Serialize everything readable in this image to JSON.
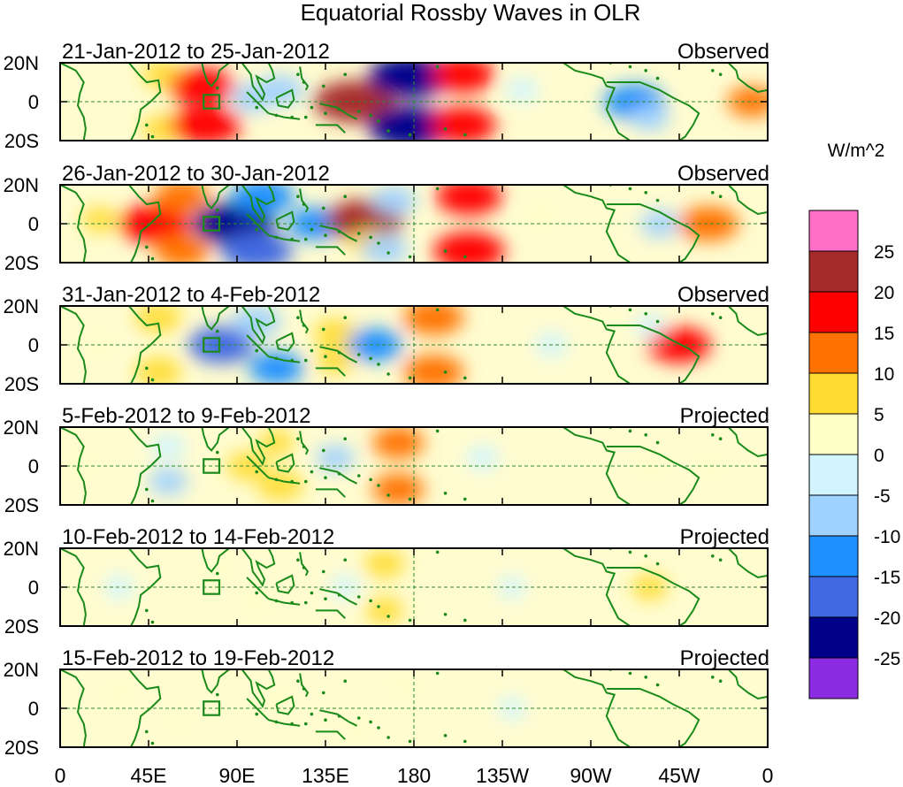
{
  "chart_data": {
    "type": "heatmap",
    "title": "Equatorial Rossby Waves in OLR",
    "colorbar_unit": "W/m^2",
    "colorbar_levels": [
      "25",
      "20",
      "15",
      "10",
      "5",
      "0",
      "-5",
      "-10",
      "-15",
      "-20",
      "-25"
    ],
    "colorbar_colors": [
      "#ff6ec7",
      "#a52a2a",
      "#ff0000",
      "#ff7200",
      "#ffdc32",
      "#ffffc8",
      "#d2f5ff",
      "#a0d2ff",
      "#1e90ff",
      "#4169e1",
      "#00008b",
      "#8b2be2"
    ],
    "x_ticks": [
      "0",
      "45E",
      "90E",
      "135E",
      "180",
      "135W",
      "90W",
      "45W",
      "0"
    ],
    "x_tick_lons": [
      0,
      45,
      90,
      135,
      180,
      225,
      270,
      315,
      360
    ],
    "y_ticks": [
      "20N",
      "0",
      "20S"
    ],
    "y_range": [
      -20,
      20
    ],
    "x_range": [
      0,
      360
    ],
    "panels": [
      {
        "date": "21-Jan-2012 to 25-Jan-2012",
        "type": "Observed",
        "anomalies": [
          {
            "lon": 52,
            "lat": 14,
            "value": 7
          },
          {
            "lon": 52,
            "lat": -14,
            "value": 7
          },
          {
            "lon": 72,
            "lat": 8,
            "value": 16
          },
          {
            "lon": 74,
            "lat": -12,
            "value": 18
          },
          {
            "lon": 98,
            "lat": 2,
            "value": -8
          },
          {
            "lon": 112,
            "lat": 6,
            "value": -9
          },
          {
            "lon": 150,
            "lat": 0,
            "value": 22
          },
          {
            "lon": 178,
            "lat": 13,
            "value": -22
          },
          {
            "lon": 178,
            "lat": -13,
            "value": -22
          },
          {
            "lon": 205,
            "lat": 14,
            "value": 15
          },
          {
            "lon": 205,
            "lat": -12,
            "value": 16
          },
          {
            "lon": 235,
            "lat": 6,
            "value": -4
          },
          {
            "lon": 292,
            "lat": 0,
            "value": -14
          },
          {
            "lon": 300,
            "lat": -8,
            "value": -6
          },
          {
            "lon": 352,
            "lat": 0,
            "value": 10
          }
        ]
      },
      {
        "date": "26-Jan-2012 to 30-Jan-2012",
        "type": "Observed",
        "anomalies": [
          {
            "lon": 20,
            "lat": 2,
            "value": 5
          },
          {
            "lon": 48,
            "lat": 0,
            "value": 18
          },
          {
            "lon": 62,
            "lat": 14,
            "value": 12
          },
          {
            "lon": 62,
            "lat": -14,
            "value": 12
          },
          {
            "lon": 88,
            "lat": 0,
            "value": -22
          },
          {
            "lon": 103,
            "lat": 14,
            "value": -15
          },
          {
            "lon": 100,
            "lat": -14,
            "value": -18
          },
          {
            "lon": 130,
            "lat": 0,
            "value": -12
          },
          {
            "lon": 155,
            "lat": 2,
            "value": 20
          },
          {
            "lon": 158,
            "lat": -10,
            "value": 8
          },
          {
            "lon": 170,
            "lat": 12,
            "value": -8
          },
          {
            "lon": 165,
            "lat": -13,
            "value": -9
          },
          {
            "lon": 208,
            "lat": 14,
            "value": 16
          },
          {
            "lon": 208,
            "lat": -14,
            "value": 18
          },
          {
            "lon": 245,
            "lat": 4,
            "value": 4
          },
          {
            "lon": 305,
            "lat": 0,
            "value": -6
          },
          {
            "lon": 330,
            "lat": 0,
            "value": 14
          }
        ]
      },
      {
        "date": "31-Jan-2012 to 4-Feb-2012",
        "type": "Observed",
        "anomalies": [
          {
            "lon": 20,
            "lat": 0,
            "value": 4
          },
          {
            "lon": 50,
            "lat": 14,
            "value": 9
          },
          {
            "lon": 50,
            "lat": -14,
            "value": 9
          },
          {
            "lon": 82,
            "lat": 0,
            "value": -16
          },
          {
            "lon": 100,
            "lat": 12,
            "value": -10
          },
          {
            "lon": 110,
            "lat": -12,
            "value": -12
          },
          {
            "lon": 140,
            "lat": 6,
            "value": 8
          },
          {
            "lon": 140,
            "lat": -8,
            "value": 6
          },
          {
            "lon": 160,
            "lat": 0,
            "value": -12
          },
          {
            "lon": 190,
            "lat": 14,
            "value": 14
          },
          {
            "lon": 190,
            "lat": -14,
            "value": 14
          },
          {
            "lon": 250,
            "lat": 0,
            "value": -4
          },
          {
            "lon": 315,
            "lat": 0,
            "value": 15
          },
          {
            "lon": 300,
            "lat": 10,
            "value": -3
          }
        ]
      },
      {
        "date": "5-Feb-2012 to 9-Feb-2012",
        "type": "Projected",
        "anomalies": [
          {
            "lon": 10,
            "lat": 0,
            "value": 4
          },
          {
            "lon": 55,
            "lat": 10,
            "value": -5
          },
          {
            "lon": 55,
            "lat": -8,
            "value": -6
          },
          {
            "lon": 95,
            "lat": 0,
            "value": 7
          },
          {
            "lon": 112,
            "lat": -10,
            "value": 9
          },
          {
            "lon": 110,
            "lat": 12,
            "value": 5
          },
          {
            "lon": 140,
            "lat": 4,
            "value": -6
          },
          {
            "lon": 172,
            "lat": 12,
            "value": 11
          },
          {
            "lon": 172,
            "lat": -12,
            "value": 11
          },
          {
            "lon": 215,
            "lat": 4,
            "value": -4
          },
          {
            "lon": 300,
            "lat": 0,
            "value": 4
          },
          {
            "lon": 330,
            "lat": 0,
            "value": 3
          }
        ]
      },
      {
        "date": "10-Feb-2012 to 14-Feb-2012",
        "type": "Projected",
        "anomalies": [
          {
            "lon": 30,
            "lat": 0,
            "value": -3
          },
          {
            "lon": 80,
            "lat": 10,
            "value": 3
          },
          {
            "lon": 100,
            "lat": -8,
            "value": 4
          },
          {
            "lon": 145,
            "lat": 0,
            "value": -3
          },
          {
            "lon": 165,
            "lat": 12,
            "value": 7
          },
          {
            "lon": 165,
            "lat": -12,
            "value": 6
          },
          {
            "lon": 230,
            "lat": 0,
            "value": -2
          },
          {
            "lon": 300,
            "lat": 0,
            "value": 5
          }
        ]
      },
      {
        "date": "15-Feb-2012 to 19-Feb-2012",
        "type": "Projected",
        "anomalies": [
          {
            "lon": 30,
            "lat": 8,
            "value": 3
          },
          {
            "lon": 60,
            "lat": -6,
            "value": 2
          },
          {
            "lon": 110,
            "lat": 4,
            "value": 3
          },
          {
            "lon": 150,
            "lat": -10,
            "value": 3
          },
          {
            "lon": 175,
            "lat": 12,
            "value": 3
          },
          {
            "lon": 230,
            "lat": 0,
            "value": -2
          },
          {
            "lon": 300,
            "lat": 6,
            "value": 1
          }
        ]
      }
    ]
  }
}
